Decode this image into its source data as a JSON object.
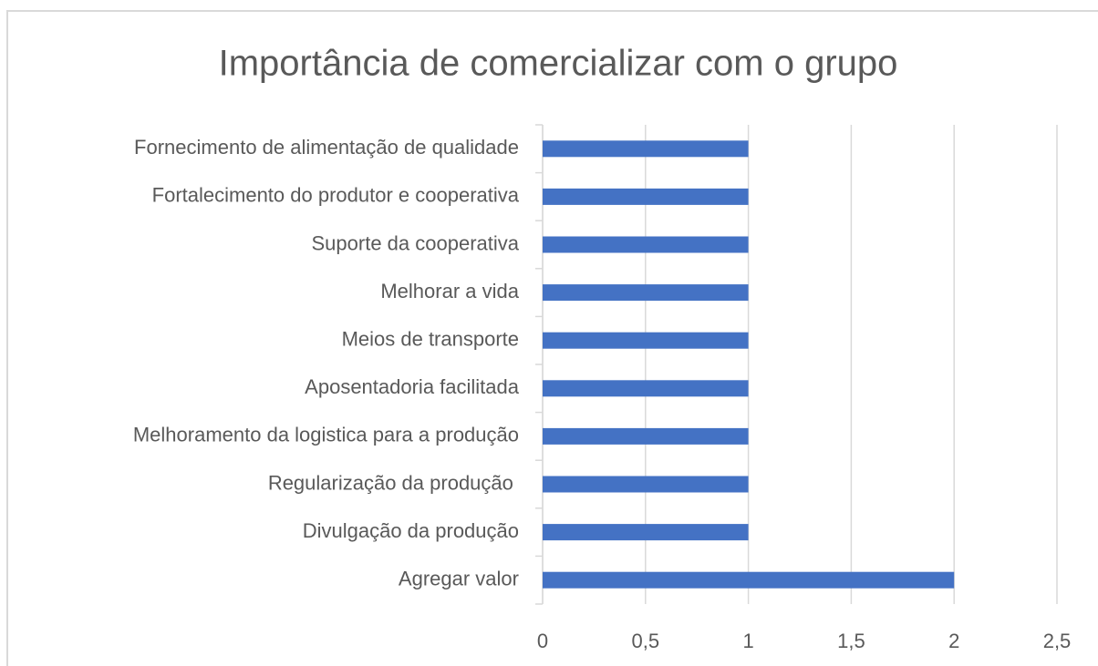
{
  "chart_data": {
    "type": "bar",
    "orientation": "horizontal",
    "title": "Importância de comercializar com o grupo",
    "categories": [
      "Fornecimento de alimentação de qualidade",
      "Fortalecimento do produtor e cooperativa",
      "Suporte da cooperativa",
      "Melhorar a vida",
      "Meios de transporte",
      "Aposentadoria facilitada",
      "Melhoramento da logistica para a produção",
      "Regularização da produção ",
      "Divulgação da produção",
      "Agregar valor"
    ],
    "values": [
      1,
      1,
      1,
      1,
      1,
      1,
      1,
      1,
      1,
      2
    ],
    "color": "#4472c4",
    "xlim": [
      0,
      2.5
    ],
    "xticks": [
      0,
      {
        "value": 0.5,
        "label": "0,5"
      },
      1,
      {
        "value": 1.5,
        "label": "1,5"
      },
      2,
      {
        "value": 2.5,
        "label": "2,5"
      }
    ],
    "grid": true
  }
}
